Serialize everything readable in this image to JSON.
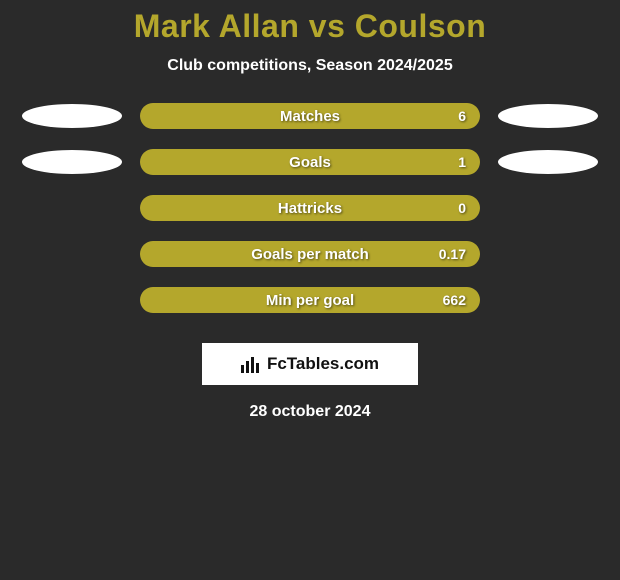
{
  "title_color": "#b4a72c",
  "title": "Mark Allan vs Coulson",
  "subtitle": "Club competitions, Season 2024/2025",
  "bar_bg": "#7a7228",
  "bar_fill_color": "#b4a72c",
  "background_color": "#2a2a2a",
  "ellipse_color": "#ffffff",
  "rows": [
    {
      "label": "Matches",
      "value": "6",
      "fill_pct": 100,
      "left_ellipse": true,
      "right_ellipse": true
    },
    {
      "label": "Goals",
      "value": "1",
      "fill_pct": 100,
      "left_ellipse": true,
      "right_ellipse": true
    },
    {
      "label": "Hattricks",
      "value": "0",
      "fill_pct": 100,
      "left_ellipse": false,
      "right_ellipse": false
    },
    {
      "label": "Goals per match",
      "value": "0.17",
      "fill_pct": 100,
      "left_ellipse": false,
      "right_ellipse": false
    },
    {
      "label": "Min per goal",
      "value": "662",
      "fill_pct": 100,
      "left_ellipse": false,
      "right_ellipse": false
    }
  ],
  "brand": "FcTables.com",
  "date": "28 october 2024"
}
